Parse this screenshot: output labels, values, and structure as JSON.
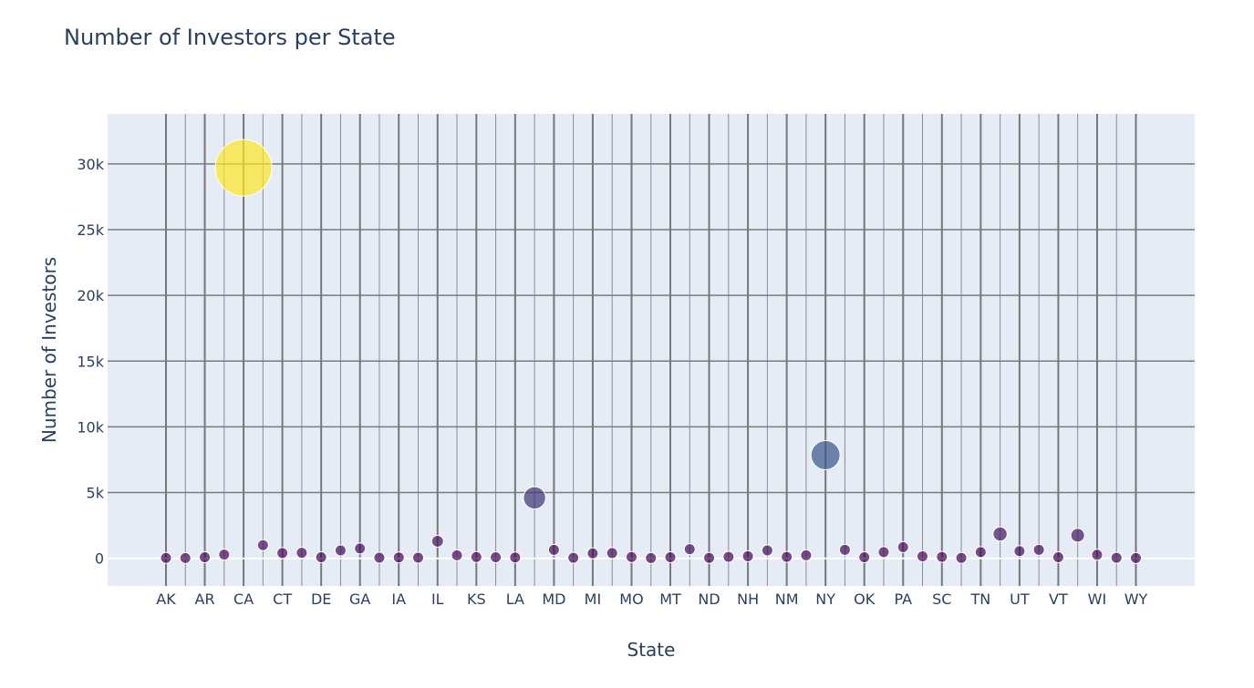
{
  "chart_data": {
    "type": "scatter",
    "title": "Number of Investors per State",
    "xlabel": "State",
    "ylabel": "Number of Investors",
    "ylim": [
      -2100,
      33800
    ],
    "y_ticks": [
      0,
      5000,
      10000,
      15000,
      20000,
      25000,
      30000
    ],
    "y_tick_labels": [
      "0",
      "5k",
      "10k",
      "15k",
      "20k",
      "25k",
      "30k"
    ],
    "x_tick_labels": [
      "AK",
      "AR",
      "CA",
      "CT",
      "DE",
      "GA",
      "IA",
      "IL",
      "KS",
      "LA",
      "MD",
      "MI",
      "MO",
      "MT",
      "ND",
      "NH",
      "NM",
      "NY",
      "OK",
      "PA",
      "SC",
      "TN",
      "UT",
      "VT",
      "WI",
      "WY"
    ],
    "grid": true,
    "marker_size_by_value": true,
    "color_scale": [
      "#440154",
      "#3b528b",
      "#21918c",
      "#5ec962",
      "#fde725"
    ],
    "plot_bg": "#e5ecf6",
    "x": [
      "AK",
      "AL",
      "AR",
      "AZ",
      "CA",
      "CO",
      "CT",
      "DC",
      "DE",
      "FL",
      "GA",
      "HI",
      "IA",
      "ID",
      "IL",
      "IN",
      "KS",
      "KY",
      "LA",
      "MA",
      "MD",
      "ME",
      "MI",
      "MN",
      "MO",
      "MS",
      "MT",
      "NC",
      "ND",
      "NE",
      "NH",
      "NJ",
      "NM",
      "NV",
      "NY",
      "OH",
      "OK",
      "OR",
      "PA",
      "RI",
      "SC",
      "SD",
      "TN",
      "TX",
      "UT",
      "VA",
      "VT",
      "WA",
      "WI",
      "WV",
      "WY"
    ],
    "values": [
      30,
      20,
      80,
      280,
      29700,
      1000,
      400,
      420,
      80,
      600,
      750,
      50,
      70,
      50,
      1300,
      230,
      100,
      80,
      70,
      4600,
      650,
      40,
      380,
      400,
      100,
      20,
      80,
      700,
      30,
      110,
      160,
      600,
      110,
      230,
      7850,
      650,
      80,
      470,
      850,
      150,
      110,
      30,
      470,
      1850,
      550,
      650,
      80,
      1750,
      270,
      40,
      20
    ]
  }
}
